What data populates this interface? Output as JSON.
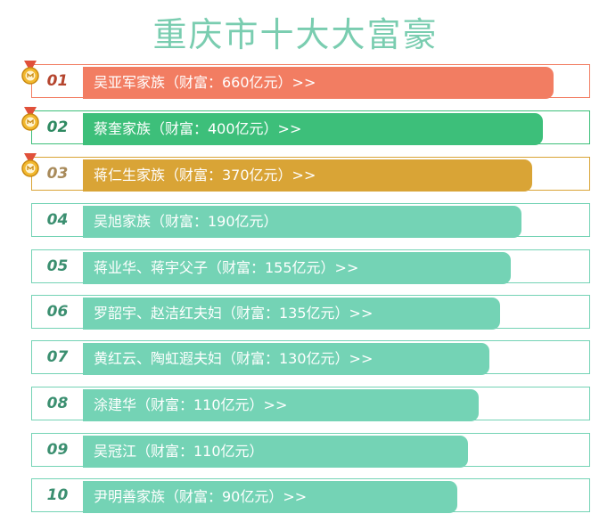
{
  "title": "重庆市十大大富豪",
  "items": [
    {
      "rank": "01",
      "text": "吴亚军家族（财富：660亿元）>>"
    },
    {
      "rank": "02",
      "text": "蔡奎家族（财富：400亿元）>>"
    },
    {
      "rank": "03",
      "text": "蒋仁生家族（财富：370亿元）>>"
    },
    {
      "rank": "04",
      "text": "吴旭家族（财富：190亿元）"
    },
    {
      "rank": "05",
      "text": "蒋业华、蒋宇父子（财富：155亿元）>>"
    },
    {
      "rank": "06",
      "text": "罗韶宇、赵洁红夫妇（财富：135亿元）>>"
    },
    {
      "rank": "07",
      "text": "黄红云、陶虹遐夫妇（财富：130亿元）>>"
    },
    {
      "rank": "08",
      "text": "涂建华（财富：110亿元）>>"
    },
    {
      "rank": "09",
      "text": "吴冠江（财富：110亿元）"
    },
    {
      "rank": "10",
      "text": "尹明善家族（财富：90亿元）>>"
    }
  ]
}
